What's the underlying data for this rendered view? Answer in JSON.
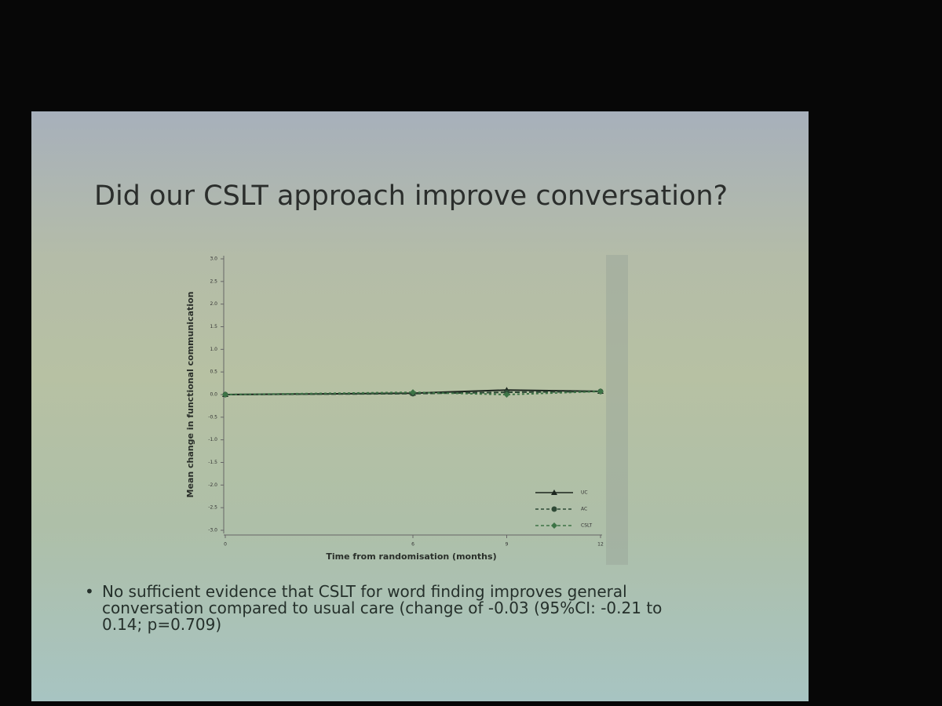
{
  "slide": {
    "title": "Did our CSLT approach improve conversation?",
    "bullet": "No sufficient evidence that CSLT for word finding improves general conversation compared to usual care (change of -0.03 (95%CI: -0.21 to 0.14; p=0.709)"
  },
  "chart_data": {
    "type": "line",
    "x_label": "Time from randomisation (months)",
    "y_label": "Mean change in functional communication",
    "x": [
      0,
      6,
      9,
      12
    ],
    "xlim": [
      0,
      12
    ],
    "xticks": [
      0,
      6,
      9,
      12
    ],
    "ylim": [
      -3,
      3
    ],
    "yticks": [
      {
        "value": -3,
        "label": "-3.0"
      },
      -2.5,
      {
        "value": -2,
        "label": "-2.0"
      },
      -1.5,
      {
        "value": -1,
        "label": "-1.0"
      },
      -0.5,
      {
        "value": 0,
        "label": "0.0"
      },
      0.5,
      {
        "value": 1,
        "label": "1.0"
      },
      1.5,
      {
        "value": 2,
        "label": "2.0"
      },
      2.5,
      {
        "value": 3,
        "label": "3.0"
      }
    ],
    "series": [
      {
        "name": "UC",
        "color": "#1c261e",
        "marker": "triangle",
        "values": [
          0,
          0.03,
          0.1,
          0.07
        ]
      },
      {
        "name": "AC",
        "color": "#2f4a36",
        "marker": "circle",
        "values": [
          0,
          0.02,
          0.05,
          0.07
        ]
      },
      {
        "name": "CSLT",
        "color": "#3d7446",
        "marker": "diamond",
        "values": [
          0,
          0.05,
          0.0,
          0.07
        ]
      }
    ]
  }
}
